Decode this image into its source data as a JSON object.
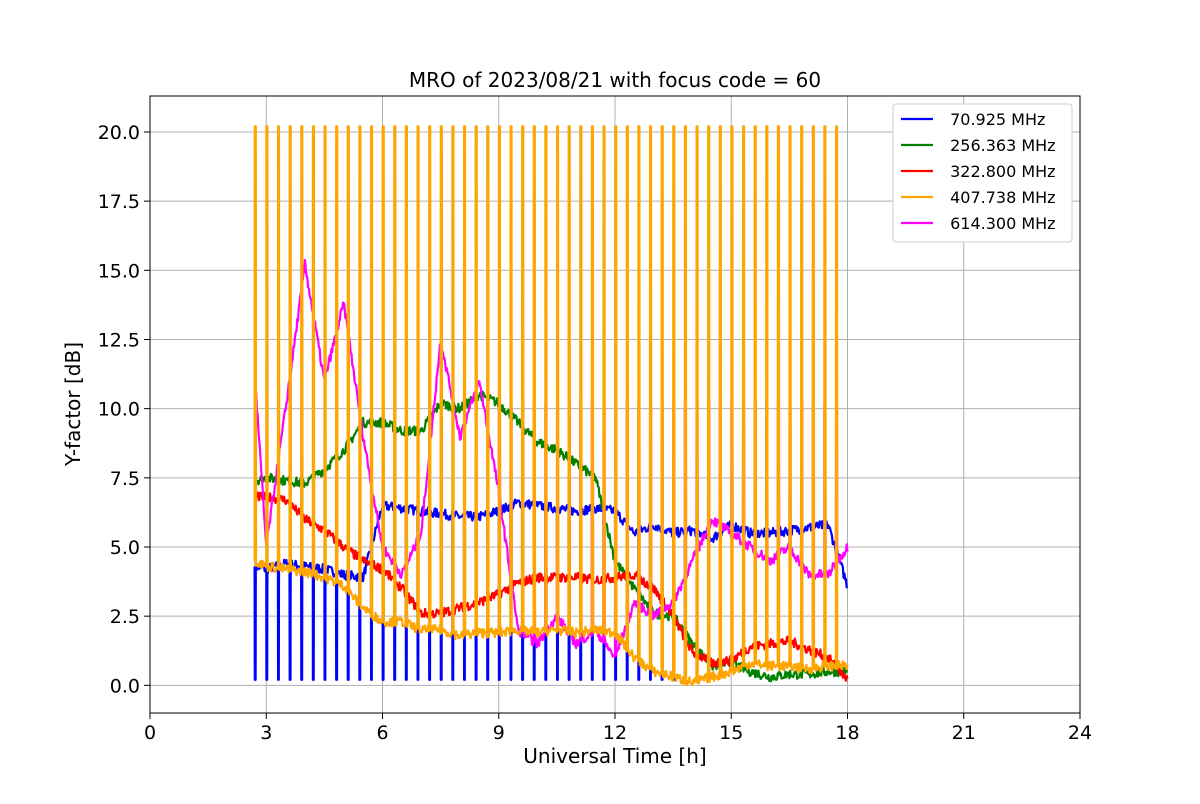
{
  "chart_data": {
    "type": "line",
    "title": "MRO of 2023/08/21 with focus code = 60",
    "xlabel": "Universal Time [h]",
    "ylabel": "Y-factor [dB]",
    "xlim": [
      0,
      24
    ],
    "ylim": [
      -1.0,
      21.3
    ],
    "xticks": [
      0,
      3,
      6,
      9,
      12,
      15,
      18,
      21,
      24
    ],
    "xtick_labels": [
      "0",
      "3",
      "6",
      "9",
      "12",
      "15",
      "18",
      "21",
      "24"
    ],
    "yticks": [
      0.0,
      2.5,
      5.0,
      7.5,
      10.0,
      12.5,
      15.0,
      17.5,
      20.0
    ],
    "ytick_labels": [
      "0.0",
      "2.5",
      "5.0",
      "7.5",
      "10.0",
      "12.5",
      "15.0",
      "17.5",
      "20.0"
    ],
    "grid": true,
    "legend_position": "top-right",
    "spike_period_h": 0.3,
    "series": [
      {
        "name": " 70.925 MHz",
        "color": "#0000ff",
        "x": [
          2.7,
          3.0,
          3.5,
          4.0,
          4.5,
          5.0,
          5.5,
          6.0,
          6.5,
          7.0,
          7.5,
          8.0,
          8.5,
          9.0,
          9.5,
          10.0,
          10.5,
          11.0,
          11.5,
          12.0,
          12.5,
          13.0,
          13.5,
          14.0,
          14.5,
          15.0,
          15.5,
          16.0,
          16.5,
          17.0,
          17.5,
          18.0
        ],
        "y": [
          4.3,
          4.2,
          4.4,
          4.3,
          4.2,
          4.0,
          3.9,
          6.5,
          6.4,
          6.3,
          6.2,
          6.1,
          6.1,
          6.3,
          6.6,
          6.5,
          6.4,
          6.3,
          6.4,
          6.3,
          5.5,
          5.8,
          5.5,
          5.6,
          5.3,
          5.8,
          5.5,
          5.5,
          5.6,
          5.7,
          5.8,
          3.6
        ],
        "dips_to": 0.2,
        "dip_until_h": 14.0
      },
      {
        "name": " 256.363 MHz",
        "color": "#008000",
        "x": [
          2.7,
          3.0,
          3.5,
          4.0,
          4.5,
          5.0,
          5.5,
          6.0,
          6.5,
          7.0,
          7.5,
          8.0,
          8.5,
          9.0,
          9.5,
          10.0,
          10.5,
          11.0,
          11.5,
          12.0,
          12.5,
          13.0,
          13.5,
          14.0,
          14.5,
          15.0,
          15.5,
          16.0,
          16.5,
          17.0,
          17.5,
          18.0
        ],
        "y": [
          7.4,
          7.5,
          7.4,
          7.3,
          7.8,
          8.5,
          9.5,
          9.5,
          9.2,
          9.2,
          10.2,
          10.0,
          10.5,
          10.2,
          9.5,
          8.8,
          8.5,
          8.0,
          7.5,
          4.5,
          3.5,
          2.6,
          2.5,
          1.5,
          0.7,
          0.8,
          0.5,
          0.3,
          0.4,
          0.4,
          0.5,
          0.5
        ]
      },
      {
        "name": " 322.800 MHz",
        "color": "#ff0000",
        "x": [
          2.7,
          3.0,
          3.5,
          4.0,
          4.5,
          5.0,
          5.5,
          6.0,
          6.5,
          7.0,
          7.5,
          8.0,
          8.5,
          9.0,
          9.5,
          10.0,
          10.5,
          11.0,
          11.5,
          12.0,
          12.5,
          13.0,
          13.5,
          14.0,
          14.5,
          15.0,
          15.5,
          16.0,
          16.5,
          17.0,
          17.5,
          18.0
        ],
        "y": [
          6.8,
          6.8,
          6.7,
          6.0,
          5.6,
          5.0,
          4.5,
          4.2,
          3.5,
          2.6,
          2.6,
          2.8,
          3.0,
          3.3,
          3.7,
          3.9,
          3.9,
          3.9,
          3.8,
          3.9,
          4.0,
          3.5,
          2.5,
          1.2,
          0.8,
          0.9,
          1.4,
          1.5,
          1.6,
          1.3,
          1.0,
          0.2
        ]
      },
      {
        "name": " 407.738 MHz",
        "color": "#ffa500",
        "x": [
          2.7,
          3.0,
          3.5,
          4.0,
          4.5,
          5.0,
          5.5,
          6.0,
          6.5,
          7.0,
          7.5,
          8.0,
          8.5,
          9.0,
          9.5,
          10.0,
          10.5,
          11.0,
          11.5,
          12.0,
          12.5,
          13.0,
          13.5,
          14.0,
          14.5,
          15.0,
          15.5,
          16.0,
          16.5,
          17.0,
          17.5,
          18.0
        ],
        "y": [
          4.5,
          4.3,
          4.2,
          4.1,
          3.9,
          3.6,
          2.8,
          2.3,
          2.3,
          2.0,
          2.0,
          1.8,
          1.9,
          1.9,
          2.0,
          1.9,
          2.0,
          1.9,
          2.0,
          1.9,
          1.0,
          0.5,
          0.3,
          0.1,
          0.3,
          0.5,
          0.8,
          0.7,
          0.7,
          0.6,
          0.7,
          0.7
        ],
        "spikes_to": 20.2
      },
      {
        "name": " 614.300 MHz",
        "color": "#ff00ff",
        "x": [
          2.7,
          3.0,
          3.5,
          4.0,
          4.5,
          5.0,
          5.5,
          6.0,
          6.5,
          7.0,
          7.5,
          8.0,
          8.5,
          9.0,
          9.5,
          10.0,
          10.5,
          11.0,
          11.5,
          12.0,
          12.5,
          13.0,
          13.5,
          14.0,
          14.5,
          15.0,
          15.5,
          16.0,
          16.5,
          17.0,
          17.5,
          18.0
        ],
        "y": [
          11.3,
          5.0,
          10.0,
          15.2,
          11.0,
          13.8,
          9.0,
          5.0,
          4.0,
          5.5,
          12.5,
          9.0,
          11.0,
          7.0,
          2.0,
          1.5,
          2.5,
          1.5,
          2.0,
          1.0,
          3.0,
          2.5,
          3.0,
          4.5,
          6.0,
          5.5,
          5.0,
          4.5,
          5.0,
          4.0,
          4.0,
          5.0
        ],
        "spikes_to": 10.2,
        "spike_from_h": 9.0
      }
    ]
  }
}
